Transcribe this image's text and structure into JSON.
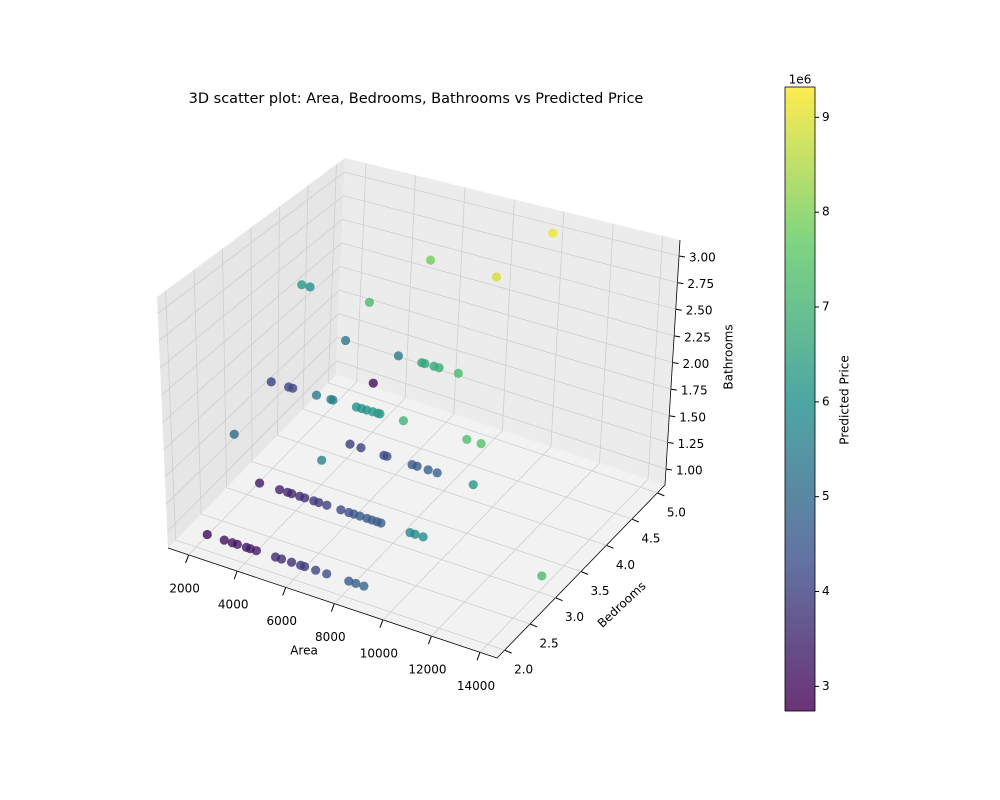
{
  "chart_data": {
    "type": "scatter3d",
    "title": "3D scatter plot: Area, Bedrooms, Bathrooms vs Predicted Price",
    "x_label": "Area",
    "y_label": "Bedrooms",
    "z_label": "Bathrooms",
    "colorbar_label": "Predicted Price",
    "colorbar_offset_label": "1e6",
    "x": [
      2473,
      3173,
      3503,
      3709,
      4080,
      4244,
      4491,
      5275,
      5522,
      5934,
      6305,
      6470,
      6923,
      7376,
      8283,
      8571,
      8901,
      2518,
      3342,
      3671,
      3836,
      4166,
      4372,
      4743,
      4949,
      5278,
      5855,
      6185,
      6391,
      6638,
      6926,
      7132,
      7338,
      7503,
      8698,
      8904,
      9234,
      14108,
      3700,
      7202,
      4125,
      4578,
      5521,
      5645,
      6679,
      6885,
      7338,
      7709,
      9191,
      10914,
      11490,
      8360,
      6465,
      6671,
      6877,
      7124,
      7330,
      7412,
      4858,
      5435,
      5517,
      3033,
      3734,
      3898,
      2975,
      3870,
      6012,
      6959,
      7082,
      7453,
      7659,
      8442,
      4273,
      4603,
      6951,
      7198,
      9835,
      9921
    ],
    "y": [
      2,
      2,
      2,
      2,
      2,
      2,
      2,
      2,
      2,
      2,
      2,
      2,
      2,
      2,
      2,
      2,
      2,
      3,
      3,
      3,
      3,
      3,
      3,
      3,
      3,
      3,
      3,
      3,
      3,
      3,
      3,
      3,
      3,
      3,
      3,
      3,
      3,
      3,
      2,
      2,
      4,
      4,
      4,
      4,
      4,
      4,
      4,
      4,
      4,
      3,
      3,
      3,
      3,
      3,
      3,
      3,
      3,
      3,
      3,
      3,
      3,
      3,
      3,
      3,
      5,
      4,
      4,
      4,
      4,
      4,
      4,
      4,
      3,
      3,
      3,
      4,
      4,
      5
    ],
    "z": [
      1,
      1,
      1,
      1,
      1,
      1,
      1,
      1,
      1,
      1,
      1,
      1,
      1,
      1,
      1,
      1,
      1,
      1,
      1,
      1,
      1,
      1,
      1,
      1,
      1,
      1,
      1,
      1,
      1,
      1,
      1,
      1,
      1,
      1,
      1,
      1,
      1,
      1,
      2,
      2,
      1,
      1,
      1,
      1,
      1,
      1,
      1,
      1,
      1,
      2,
      2,
      2,
      2,
      2,
      2,
      2,
      2,
      2,
      2,
      2,
      2,
      2,
      2,
      2,
      1,
      2,
      2,
      2,
      2,
      2,
      2,
      2,
      3,
      3,
      3,
      3,
      3,
      3
    ],
    "c": [
      2.9,
      3.0,
      3.1,
      3.15,
      3.2,
      3.25,
      3.3,
      3.55,
      3.6,
      3.7,
      3.85,
      3.9,
      4.1,
      4.3,
      4.6,
      4.75,
      4.85,
      3.2,
      3.4,
      3.5,
      3.5,
      3.6,
      3.7,
      3.8,
      3.9,
      4.0,
      4.2,
      4.3,
      4.4,
      4.5,
      4.6,
      4.6,
      4.7,
      4.7,
      5.7,
      5.8,
      5.9,
      7.2,
      5.0,
      5.6,
      3.9,
      4.0,
      4.2,
      4.3,
      4.5,
      4.6,
      4.7,
      4.8,
      6.2,
      7.3,
      7.4,
      7.0,
      6.0,
      6.05,
      6.1,
      6.2,
      6.2,
      6.3,
      5.4,
      5.6,
      5.6,
      4.0,
      4.2,
      4.2,
      3.0,
      5.3,
      5.5,
      6.6,
      6.6,
      6.7,
      6.8,
      7.2,
      6.3,
      6.0,
      7.2,
      7.9,
      8.9,
      9.2
    ],
    "xlim": [
      1150,
      14700
    ],
    "ylim": [
      1.85,
      5.15
    ],
    "zlim": [
      0.85,
      3.15
    ],
    "clim": [
      2.74,
      9.32
    ],
    "xticks": [
      2000,
      4000,
      6000,
      8000,
      10000,
      12000,
      14000
    ],
    "yticks": [
      {
        "value": 2,
        "label": "2.0"
      },
      2.5,
      {
        "value": 3,
        "label": "3.0"
      },
      3.5,
      {
        "value": 4,
        "label": "4.0"
      },
      4.5,
      {
        "value": 5,
        "label": "5.0"
      }
    ],
    "zticks": [
      {
        "value": 1,
        "label": "1.00"
      },
      1.25,
      {
        "value": 1.5,
        "label": "1.50"
      },
      1.75,
      {
        "value": 2,
        "label": "2.00"
      },
      2.25,
      {
        "value": 2.5,
        "label": "2.50"
      },
      2.75,
      {
        "value": 3,
        "label": "3.00"
      }
    ],
    "cticks": [
      3,
      4,
      5,
      6,
      7,
      8,
      9
    ],
    "colormap": "viridis",
    "grid": true
  }
}
